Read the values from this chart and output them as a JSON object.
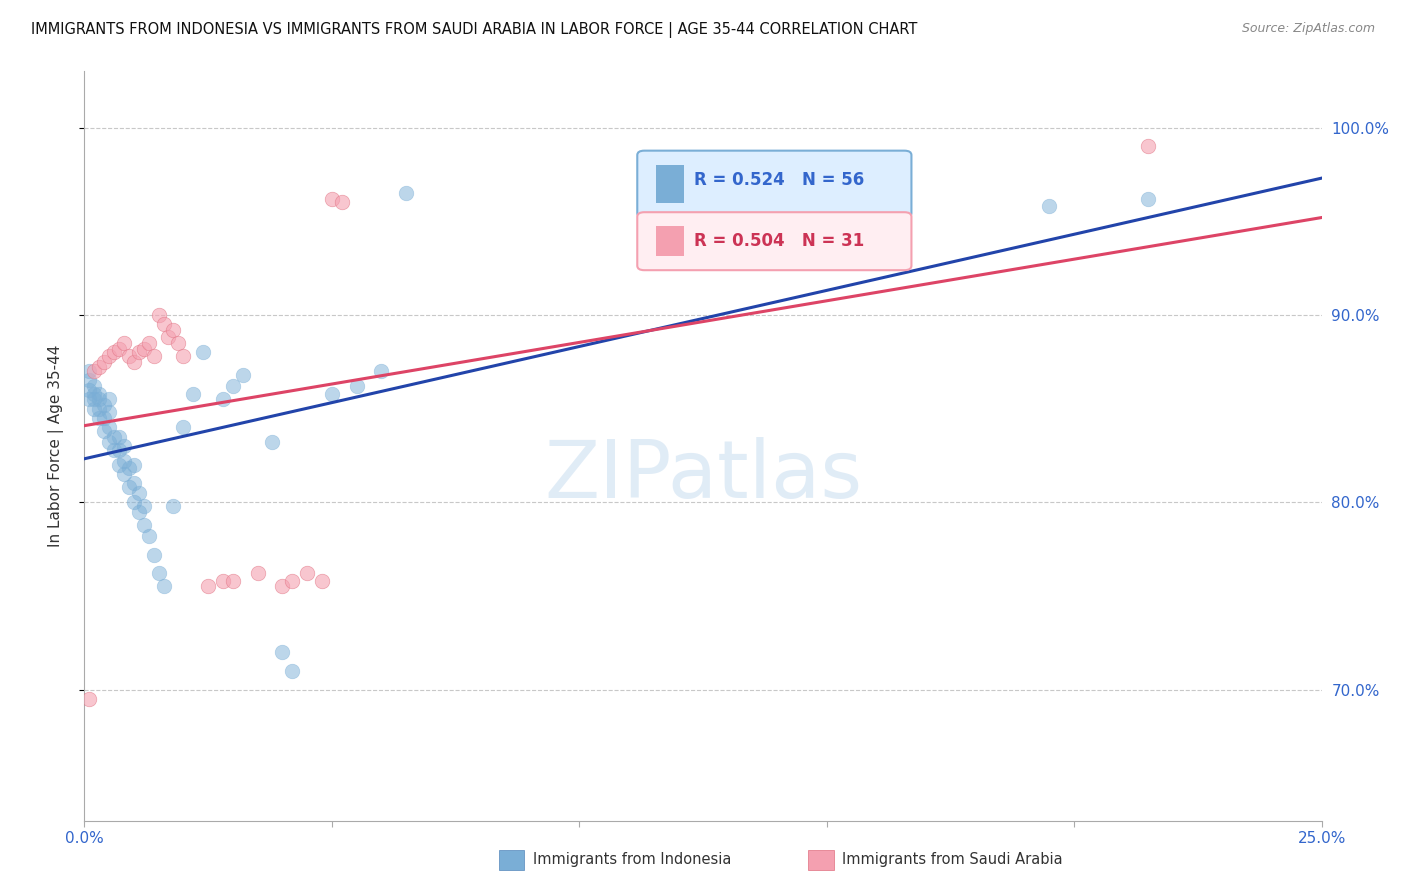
{
  "title": "IMMIGRANTS FROM INDONESIA VS IMMIGRANTS FROM SAUDI ARABIA IN LABOR FORCE | AGE 35-44 CORRELATION CHART",
  "source": "Source: ZipAtlas.com",
  "ylabel": "In Labor Force | Age 35-44",
  "xlim": [
    0.0,
    0.25
  ],
  "ylim": [
    0.63,
    1.03
  ],
  "xticks": [
    0.0,
    0.05,
    0.1,
    0.15,
    0.2,
    0.25
  ],
  "xticklabels": [
    "0.0%",
    "",
    "",
    "",
    "",
    "25.0%"
  ],
  "yticks": [
    0.7,
    0.8,
    0.9,
    1.0
  ],
  "yticklabels": [
    "70.0%",
    "80.0%",
    "90.0%",
    "100.0%"
  ],
  "grid_color": "#c8c8c8",
  "background_color": "#ffffff",
  "indonesia_color": "#7aaed6",
  "indonesia_edge": "#5588bb",
  "saudi_color": "#f4a0b0",
  "saudi_edge": "#e07080",
  "trendline_blue": "#2244aa",
  "trendline_pink": "#dd4466",
  "indonesia_R": 0.524,
  "indonesia_N": 56,
  "saudi_R": 0.504,
  "saudi_N": 31,
  "watermark": "ZIPatlas",
  "watermark_zip_color": "#c8ddf0",
  "watermark_atlas_color": "#c8ddf0",
  "legend_indonesia": "Immigrants from Indonesia",
  "legend_saudi": "Immigrants from Saudi Arabia",
  "axis_color": "#3366cc",
  "title_color": "#111111",
  "ylabel_color": "#333333",
  "indonesia_x": [
    0.001,
    0.001,
    0.001,
    0.001,
    0.002,
    0.002,
    0.002,
    0.002,
    0.003,
    0.003,
    0.003,
    0.003,
    0.004,
    0.004,
    0.004,
    0.005,
    0.005,
    0.005,
    0.005,
    0.006,
    0.006,
    0.007,
    0.007,
    0.007,
    0.008,
    0.008,
    0.008,
    0.009,
    0.009,
    0.01,
    0.01,
    0.01,
    0.011,
    0.011,
    0.012,
    0.012,
    0.013,
    0.014,
    0.015,
    0.016,
    0.018,
    0.02,
    0.022,
    0.024,
    0.028,
    0.03,
    0.032,
    0.038,
    0.04,
    0.042,
    0.05,
    0.055,
    0.06,
    0.065,
    0.195,
    0.215
  ],
  "indonesia_y": [
    0.855,
    0.86,
    0.865,
    0.87,
    0.85,
    0.855,
    0.858,
    0.862,
    0.845,
    0.85,
    0.855,
    0.858,
    0.838,
    0.845,
    0.852,
    0.832,
    0.84,
    0.848,
    0.855,
    0.828,
    0.835,
    0.82,
    0.828,
    0.835,
    0.815,
    0.822,
    0.83,
    0.808,
    0.818,
    0.8,
    0.81,
    0.82,
    0.795,
    0.805,
    0.788,
    0.798,
    0.782,
    0.772,
    0.762,
    0.755,
    0.798,
    0.84,
    0.858,
    0.88,
    0.855,
    0.862,
    0.868,
    0.832,
    0.72,
    0.71,
    0.858,
    0.862,
    0.87,
    0.965,
    0.958,
    0.962
  ],
  "saudi_x": [
    0.001,
    0.002,
    0.003,
    0.004,
    0.005,
    0.006,
    0.007,
    0.008,
    0.009,
    0.01,
    0.011,
    0.012,
    0.013,
    0.014,
    0.015,
    0.016,
    0.017,
    0.018,
    0.019,
    0.02,
    0.025,
    0.028,
    0.03,
    0.035,
    0.04,
    0.042,
    0.045,
    0.048,
    0.05,
    0.052,
    0.215
  ],
  "saudi_y": [
    0.695,
    0.87,
    0.872,
    0.875,
    0.878,
    0.88,
    0.882,
    0.885,
    0.878,
    0.875,
    0.88,
    0.882,
    0.885,
    0.878,
    0.9,
    0.895,
    0.888,
    0.892,
    0.885,
    0.878,
    0.755,
    0.758,
    0.758,
    0.762,
    0.755,
    0.758,
    0.762,
    0.758,
    0.962,
    0.96,
    0.99
  ]
}
